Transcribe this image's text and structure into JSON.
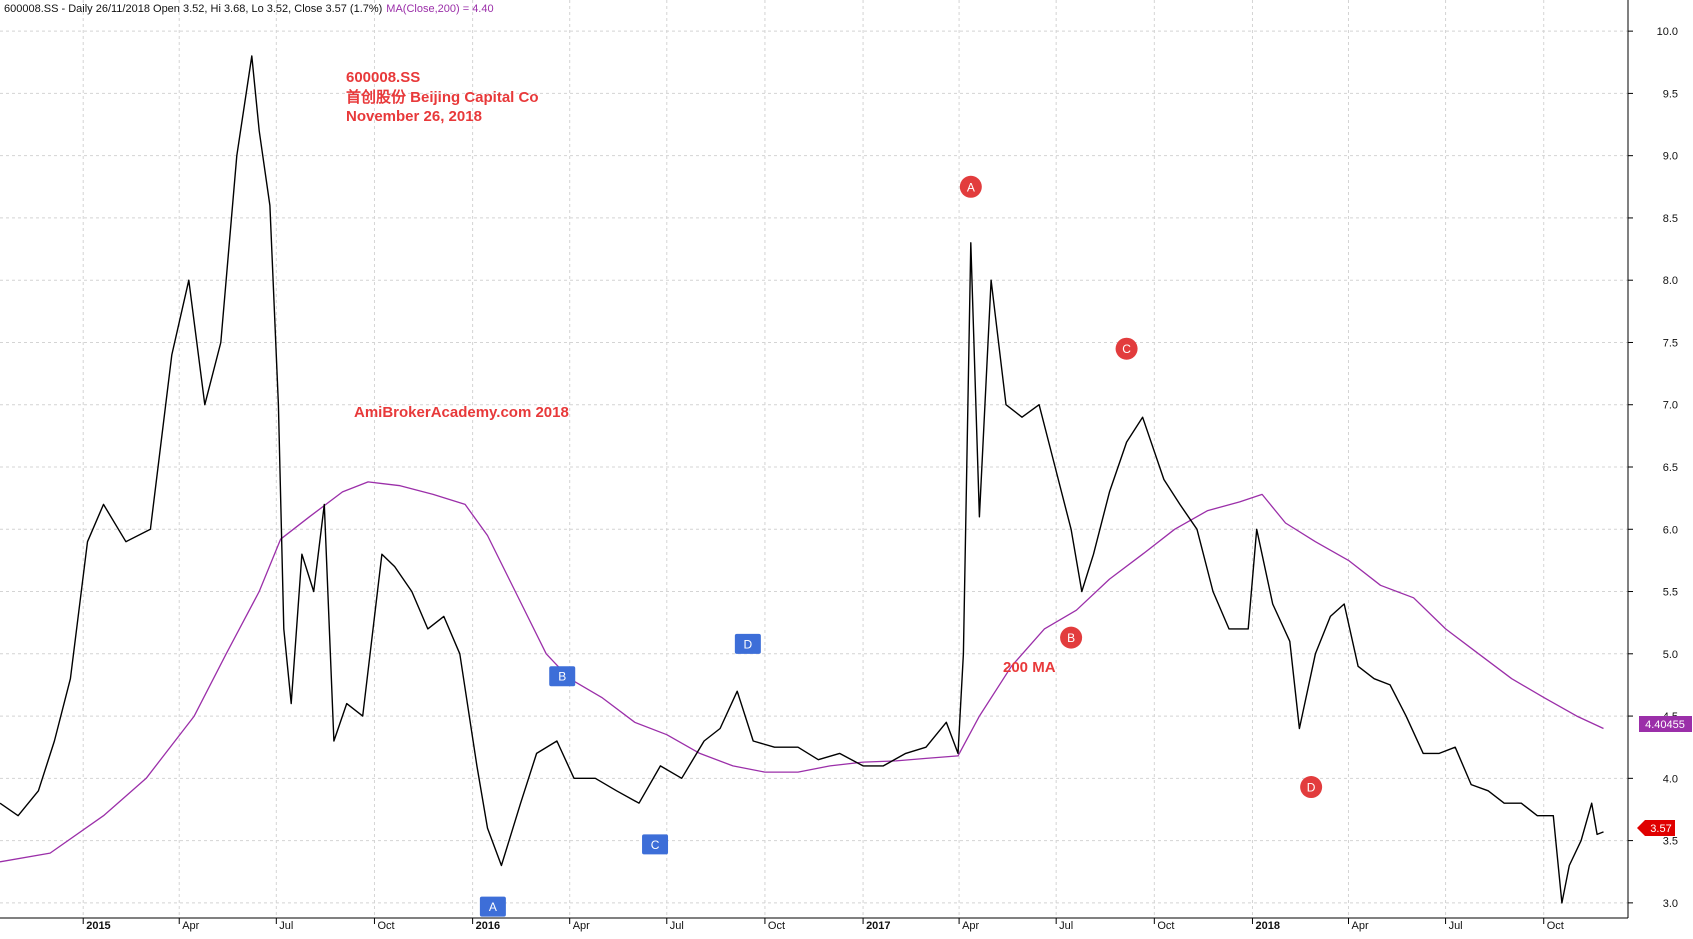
{
  "header": {
    "symbol_text": "600008.SS - Daily 26/11/2018 Open 3.52, Hi 3.68, Lo 3.52, Close 3.57 (1.7%)",
    "ma_text": "MA(Close,200) = 4.40"
  },
  "annotations": {
    "ticker": "600008.SS",
    "company": "首创股份 Beijing Capital Co",
    "date": "November 26, 2018",
    "watermark": "AmiBrokerAcademy.com  2018",
    "ma_label": "200 MA"
  },
  "badges": {
    "ma_value": "4.40455",
    "last_price": "3.57"
  },
  "colors": {
    "price": "#000000",
    "ma": "#9b2fa9",
    "annotation": "#e8393a",
    "circle_marker": "#e23c3d",
    "box_marker": "#3d6ed8",
    "grid": "#d4d4d4",
    "last_price_badge": "#e00000"
  },
  "chart_data": {
    "type": "line",
    "title": "600008.SS",
    "x_tick_labels": [
      "2015",
      "Apr",
      "Jul",
      "Oct",
      "2016",
      "Apr",
      "Jul",
      "Oct",
      "2017",
      "Apr",
      "Jul",
      "Oct",
      "2018",
      "Apr",
      "Jul",
      "Oct"
    ],
    "x_tick_dates": [
      "2015-01-01",
      "2015-04-01",
      "2015-07-01",
      "2015-10-01",
      "2016-01-01",
      "2016-04-01",
      "2016-07-01",
      "2016-10-01",
      "2017-01-01",
      "2017-04-01",
      "2017-07-01",
      "2017-10-01",
      "2018-01-01",
      "2018-04-01",
      "2018-07-01",
      "2018-10-01"
    ],
    "x_range": [
      "2014-10-15",
      "2018-12-19"
    ],
    "y_tick_labels": [
      "3.0",
      "3.5",
      "4.0",
      "4.5",
      "5.0",
      "5.5",
      "6.0",
      "6.5",
      "7.0",
      "7.5",
      "8.0",
      "8.5",
      "9.0",
      "9.5",
      "10.0"
    ],
    "ylim": [
      2.75,
      10.25
    ],
    "grid": true,
    "series": [
      {
        "name": "600008.SS",
        "x": [
          "2014-10-15",
          "2014-11-01",
          "2014-11-20",
          "2014-12-05",
          "2014-12-20",
          "2015-01-05",
          "2015-01-20",
          "2015-02-10",
          "2015-03-05",
          "2015-03-25",
          "2015-04-10",
          "2015-04-25",
          "2015-05-10",
          "2015-05-25",
          "2015-06-08",
          "2015-06-15",
          "2015-06-25",
          "2015-07-03",
          "2015-07-08",
          "2015-07-15",
          "2015-07-25",
          "2015-08-05",
          "2015-08-15",
          "2015-08-24",
          "2015-09-05",
          "2015-09-20",
          "2015-10-08",
          "2015-10-20",
          "2015-11-05",
          "2015-11-20",
          "2015-12-05",
          "2015-12-20",
          "2016-01-05",
          "2016-01-15",
          "2016-01-28",
          "2016-02-15",
          "2016-03-01",
          "2016-03-20",
          "2016-04-05",
          "2016-04-25",
          "2016-05-15",
          "2016-06-05",
          "2016-06-25",
          "2016-07-15",
          "2016-08-05",
          "2016-08-20",
          "2016-09-05",
          "2016-09-20",
          "2016-10-10",
          "2016-11-01",
          "2016-11-20",
          "2016-12-10",
          "2017-01-01",
          "2017-01-20",
          "2017-02-10",
          "2017-03-01",
          "2017-03-20",
          "2017-03-31",
          "2017-04-05",
          "2017-04-12",
          "2017-04-20",
          "2017-05-01",
          "2017-05-15",
          "2017-05-30",
          "2017-06-15",
          "2017-06-30",
          "2017-07-15",
          "2017-07-25",
          "2017-08-05",
          "2017-08-20",
          "2017-09-05",
          "2017-09-20",
          "2017-10-10",
          "2017-10-25",
          "2017-11-10",
          "2017-11-25",
          "2017-12-10",
          "2017-12-28",
          "2018-01-05",
          "2018-01-20",
          "2018-02-05",
          "2018-02-14",
          "2018-03-01",
          "2018-03-15",
          "2018-03-28",
          "2018-04-10",
          "2018-04-25",
          "2018-05-10",
          "2018-05-25",
          "2018-06-10",
          "2018-06-25",
          "2018-07-10",
          "2018-07-25",
          "2018-08-10",
          "2018-08-25",
          "2018-09-10",
          "2018-09-25",
          "2018-10-10",
          "2018-10-18",
          "2018-10-25",
          "2018-11-05",
          "2018-11-15",
          "2018-11-20",
          "2018-11-26"
        ],
        "y": [
          3.8,
          3.7,
          3.9,
          4.3,
          4.8,
          5.9,
          6.2,
          5.9,
          6.0,
          7.4,
          8.0,
          7.0,
          7.5,
          9.0,
          9.8,
          9.2,
          8.6,
          7.0,
          5.2,
          4.6,
          5.8,
          5.5,
          6.2,
          4.3,
          4.6,
          4.5,
          5.8,
          5.7,
          5.5,
          5.2,
          5.3,
          5.0,
          4.1,
          3.6,
          3.3,
          3.8,
          4.2,
          4.3,
          4.0,
          4.0,
          3.9,
          3.8,
          4.1,
          4.0,
          4.3,
          4.4,
          4.7,
          4.3,
          4.25,
          4.25,
          4.15,
          4.2,
          4.1,
          4.1,
          4.2,
          4.25,
          4.45,
          4.2,
          5.0,
          8.3,
          6.1,
          8.0,
          7.0,
          6.9,
          7.0,
          6.5,
          6.0,
          5.5,
          5.8,
          6.3,
          6.7,
          6.9,
          6.4,
          6.2,
          6.0,
          5.5,
          5.2,
          5.2,
          6.0,
          5.4,
          5.1,
          4.4,
          5.0,
          5.3,
          5.4,
          4.9,
          4.8,
          4.75,
          4.5,
          4.2,
          4.2,
          4.25,
          3.95,
          3.9,
          3.8,
          3.8,
          3.7,
          3.7,
          3.0,
          3.3,
          3.5,
          3.8,
          3.55,
          3.57
        ]
      },
      {
        "name": "MA(Close,200)",
        "x": [
          "2014-10-15",
          "2014-12-01",
          "2015-01-20",
          "2015-03-01",
          "2015-04-15",
          "2015-05-15",
          "2015-06-15",
          "2015-07-05",
          "2015-08-01",
          "2015-09-01",
          "2015-09-25",
          "2015-10-25",
          "2015-11-25",
          "2015-12-25",
          "2016-01-15",
          "2016-02-10",
          "2016-03-10",
          "2016-04-01",
          "2016-05-01",
          "2016-06-01",
          "2016-07-01",
          "2016-08-01",
          "2016-09-01",
          "2016-10-01",
          "2016-11-01",
          "2016-12-01",
          "2017-01-01",
          "2017-02-01",
          "2017-03-01",
          "2017-03-31",
          "2017-04-20",
          "2017-05-20",
          "2017-06-20",
          "2017-07-20",
          "2017-08-20",
          "2017-09-20",
          "2017-10-20",
          "2017-11-20",
          "2017-12-20",
          "2018-01-10",
          "2018-02-01",
          "2018-03-01",
          "2018-04-01",
          "2018-05-01",
          "2018-06-01",
          "2018-07-01",
          "2018-08-01",
          "2018-09-01",
          "2018-10-01",
          "2018-11-01",
          "2018-11-26"
        ],
        "y": [
          3.33,
          3.4,
          3.7,
          4.0,
          4.5,
          5.0,
          5.5,
          5.92,
          6.1,
          6.3,
          6.38,
          6.35,
          6.28,
          6.2,
          5.95,
          5.5,
          5.0,
          4.8,
          4.65,
          4.45,
          4.35,
          4.2,
          4.1,
          4.05,
          4.05,
          4.1,
          4.13,
          4.14,
          4.16,
          4.18,
          4.5,
          4.9,
          5.2,
          5.35,
          5.6,
          5.8,
          6.0,
          6.15,
          6.22,
          6.28,
          6.05,
          5.9,
          5.75,
          5.55,
          5.45,
          5.2,
          5.0,
          4.8,
          4.65,
          4.5,
          4.4
        ]
      }
    ],
    "markers": [
      {
        "label": "A",
        "shape": "circle",
        "date": "2017-04-12",
        "price": 8.75
      },
      {
        "label": "C",
        "shape": "circle",
        "date": "2017-09-05",
        "price": 7.45
      },
      {
        "label": "B",
        "shape": "circle",
        "date": "2017-07-15",
        "price": 5.13
      },
      {
        "label": "D",
        "shape": "circle",
        "date": "2018-02-25",
        "price": 3.93
      },
      {
        "label": "B",
        "shape": "box",
        "date": "2016-03-25",
        "price": 4.82
      },
      {
        "label": "D",
        "shape": "box",
        "date": "2016-09-15",
        "price": 5.08
      },
      {
        "label": "C",
        "shape": "box",
        "date": "2016-06-20",
        "price": 3.47
      },
      {
        "label": "A",
        "shape": "box",
        "date": "2016-01-20",
        "price": 2.97
      }
    ]
  }
}
